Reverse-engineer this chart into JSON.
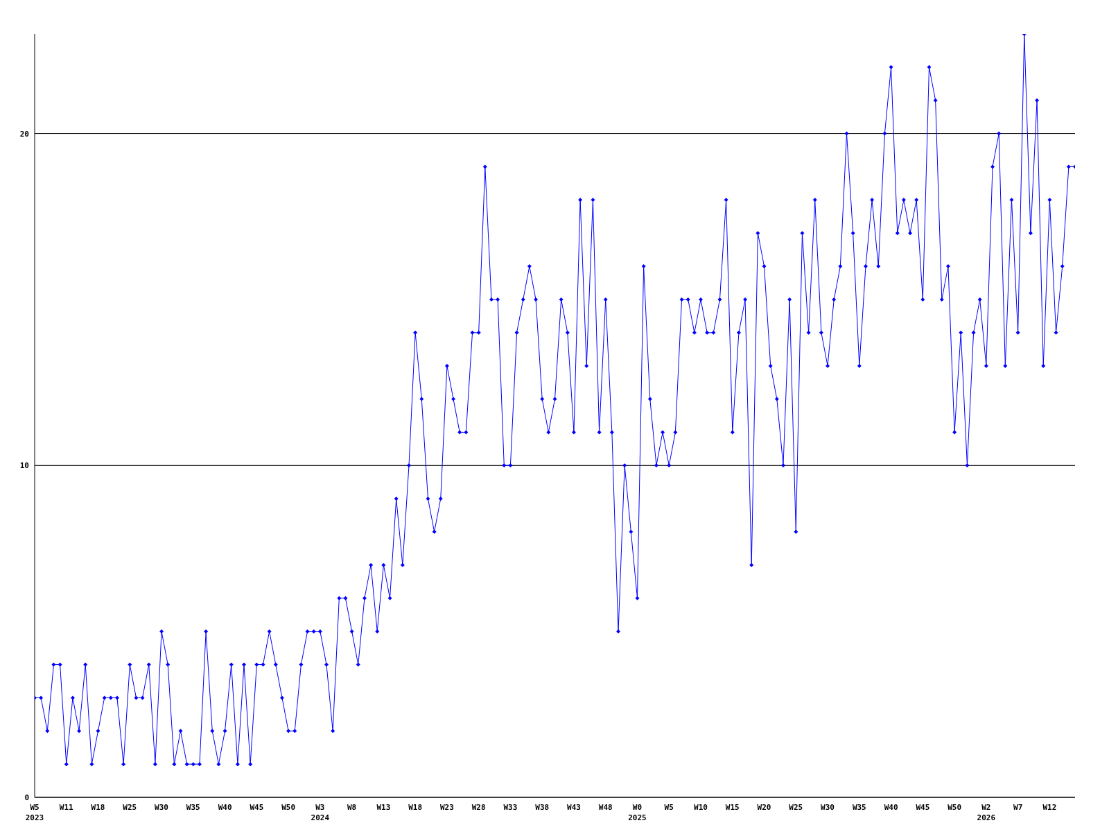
{
  "chart_data": {
    "type": "line",
    "categories": [
      "W5\n2023",
      null,
      null,
      null,
      null,
      "W11",
      null,
      null,
      null,
      null,
      "W18",
      null,
      null,
      null,
      null,
      "W25",
      null,
      null,
      null,
      null,
      "W30",
      null,
      null,
      null,
      null,
      "W35",
      null,
      null,
      null,
      null,
      "W40",
      null,
      null,
      null,
      null,
      "W45",
      null,
      null,
      null,
      null,
      "W50",
      null,
      null,
      null,
      null,
      "W3\n2024",
      null,
      null,
      null,
      null,
      "W8",
      null,
      null,
      null,
      null,
      "W13",
      null,
      null,
      null,
      null,
      "W18",
      null,
      null,
      null,
      null,
      "W23",
      null,
      null,
      null,
      null,
      "W28",
      null,
      null,
      null,
      null,
      "W33",
      null,
      null,
      null,
      null,
      "W38",
      null,
      null,
      null,
      null,
      "W43",
      null,
      null,
      null,
      null,
      "W48",
      null,
      null,
      null,
      null,
      "W0\n2025",
      null,
      null,
      null,
      null,
      "W5",
      null,
      null,
      null,
      null,
      "W10",
      null,
      null,
      null,
      null,
      "W15",
      null,
      null,
      null,
      null,
      "W20",
      null,
      null,
      null,
      null,
      "W25",
      null,
      null,
      null,
      null,
      "W30",
      null,
      null,
      null,
      null,
      "W35",
      null,
      null,
      null,
      null,
      "W40",
      null,
      null,
      null,
      null,
      "W45",
      null,
      null,
      null,
      null,
      "W50",
      null,
      null,
      null,
      null,
      "W2\n2026",
      null,
      null,
      null,
      null,
      "W7",
      null,
      null,
      null,
      null,
      "W12",
      null,
      null,
      null,
      null
    ],
    "series": [
      {
        "color": "#0000ff",
        "values": [
          3,
          3,
          2,
          4,
          4,
          1,
          3,
          2,
          4,
          1,
          2,
          3,
          3,
          3,
          1,
          4,
          3,
          3,
          4,
          1,
          5,
          4,
          1,
          2,
          1,
          1,
          1,
          5,
          2,
          1,
          2,
          4,
          1,
          4,
          1,
          4,
          4,
          5,
          4,
          3,
          2,
          2,
          4,
          5,
          5,
          5,
          4,
          2,
          6,
          6,
          5,
          4,
          6,
          7,
          5,
          7,
          6,
          9,
          7,
          10,
          14,
          12,
          9,
          8,
          9,
          13,
          12,
          11,
          11,
          14,
          14,
          19,
          15,
          15,
          10,
          10,
          14,
          15,
          16,
          15,
          12,
          11,
          12,
          15,
          14,
          11,
          18,
          13,
          18,
          11,
          15,
          11,
          5,
          10,
          8,
          6,
          16,
          12,
          10,
          11,
          10,
          11,
          15,
          15,
          14,
          15,
          14,
          14,
          15,
          18,
          11,
          14,
          15,
          7,
          17,
          16,
          13,
          12,
          10,
          15,
          8,
          17,
          14,
          18,
          14,
          13,
          15,
          16,
          20,
          17,
          13,
          16,
          18,
          16,
          20,
          22,
          17,
          18,
          17,
          18,
          15,
          22,
          21,
          15,
          16,
          11,
          14,
          10,
          14,
          15,
          13,
          19,
          20,
          13,
          18,
          14,
          23,
          17,
          21,
          13,
          18,
          14,
          16,
          19,
          19
        ]
      }
    ],
    "ylim": [
      0,
      23
    ],
    "yticks": [
      0,
      10,
      20
    ],
    "grid": "y",
    "marker": "diamond",
    "line_style": "solid"
  }
}
